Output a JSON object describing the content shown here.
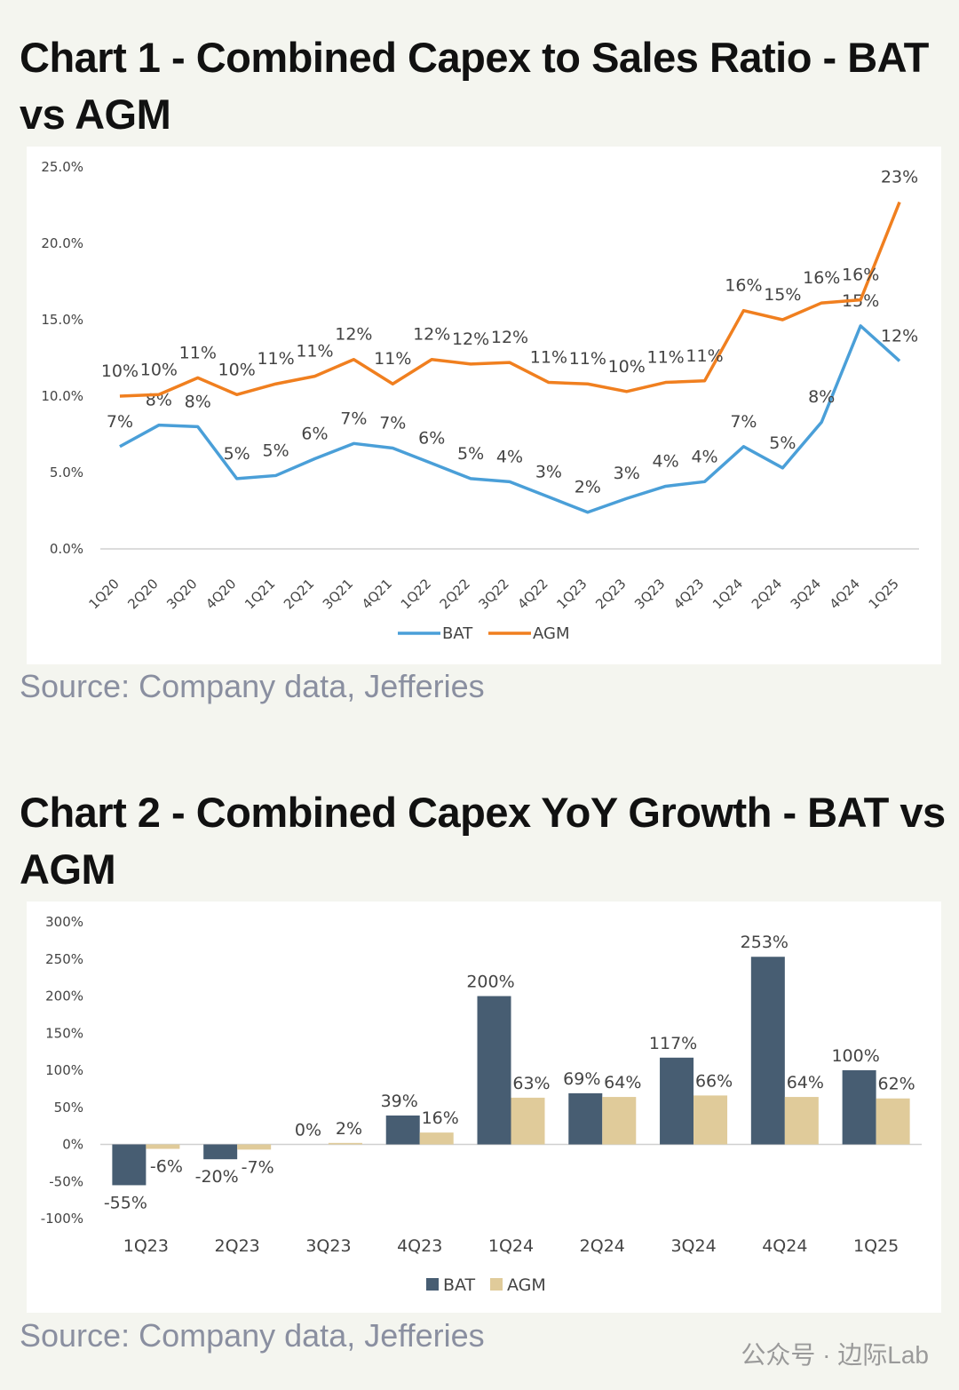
{
  "chart_data": [
    {
      "type": "line",
      "title": "Chart 1 - Combined Capex to Sales Ratio - BAT vs AGM",
      "source": "Source: Company data, Jefferies",
      "categories": [
        "1Q20",
        "2Q20",
        "3Q20",
        "4Q20",
        "1Q21",
        "2Q21",
        "3Q21",
        "4Q21",
        "1Q22",
        "2Q22",
        "3Q22",
        "4Q22",
        "1Q23",
        "2Q23",
        "3Q23",
        "4Q23",
        "1Q24",
        "2Q24",
        "3Q24",
        "4Q24",
        "1Q25"
      ],
      "series": [
        {
          "name": "BAT",
          "color": "#4a9fd8",
          "values": [
            6.7,
            8.1,
            8.0,
            4.6,
            4.8,
            5.9,
            6.9,
            6.6,
            5.6,
            4.6,
            4.4,
            3.4,
            2.4,
            3.3,
            4.1,
            4.4,
            6.7,
            5.3,
            8.3,
            14.6,
            12.3
          ],
          "value_labels": [
            "7%",
            "8%",
            "8%",
            "5%",
            "5%",
            "6%",
            "7%",
            "7%",
            "6%",
            "5%",
            "4%",
            "3%",
            "2%",
            "3%",
            "4%",
            "4%",
            "7%",
            "5%",
            "8%",
            "15%",
            "12%"
          ]
        },
        {
          "name": "AGM",
          "color": "#f07f1f",
          "values": [
            10.0,
            10.1,
            11.2,
            10.1,
            10.8,
            11.3,
            12.4,
            10.8,
            12.4,
            12.1,
            12.2,
            10.9,
            10.8,
            10.3,
            10.9,
            11.0,
            15.6,
            15.0,
            16.1,
            16.3,
            22.7
          ],
          "value_labels": [
            "10%",
            "10%",
            "11%",
            "10%",
            "11%",
            "11%",
            "12%",
            "11%",
            "12%",
            "12%",
            "12%",
            "11%",
            "11%",
            "10%",
            "11%",
            "11%",
            "16%",
            "15%",
            "16%",
            "16%",
            "23%"
          ]
        }
      ],
      "ylim": [
        0,
        25
      ],
      "yticks": [
        {
          "value": 0,
          "label": "0.0%"
        },
        {
          "value": 5,
          "label": "5.0%"
        },
        {
          "value": 10,
          "label": "10.0%"
        },
        {
          "value": 15,
          "label": "15.0%"
        },
        {
          "value": 20,
          "label": "20.0%"
        },
        {
          "value": 25,
          "label": "25.0%"
        }
      ],
      "grid": false,
      "legend": "bottom"
    },
    {
      "type": "bar",
      "title": "Chart 2 - Combined Capex YoY Growth - BAT vs AGM",
      "source": "Source: Company data, Jefferies",
      "categories": [
        "1Q23",
        "2Q23",
        "3Q23",
        "4Q23",
        "1Q24",
        "2Q24",
        "3Q24",
        "4Q24",
        "1Q25"
      ],
      "series": [
        {
          "name": "BAT",
          "color": "#475d72",
          "values": [
            -55,
            -20,
            0,
            39,
            200,
            69,
            117,
            253,
            100
          ],
          "value_labels": [
            "-55%",
            "-20%",
            "0%",
            "39%",
            "200%",
            "69%",
            "117%",
            "253%",
            "100%"
          ]
        },
        {
          "name": "AGM",
          "color": "#e0cb9a",
          "values": [
            -6,
            -7,
            2,
            16,
            63,
            64,
            66,
            64,
            62
          ],
          "value_labels": [
            "-6%",
            "-7%",
            "2%",
            "16%",
            "63%",
            "64%",
            "66%",
            "64%",
            "62%"
          ]
        }
      ],
      "ylim": [
        -100,
        300
      ],
      "yticks": [
        {
          "value": -100,
          "label": "-100%"
        },
        {
          "value": -50,
          "label": "-50%"
        },
        {
          "value": 0,
          "label": "0%"
        },
        {
          "value": 50,
          "label": "50%"
        },
        {
          "value": 100,
          "label": "100%"
        },
        {
          "value": 150,
          "label": "150%"
        },
        {
          "value": 200,
          "label": "200%"
        },
        {
          "value": 250,
          "label": "250%"
        },
        {
          "value": 300,
          "label": "300%"
        }
      ],
      "grid": false,
      "legend": "bottom"
    }
  ],
  "watermark": "公众号 · 边际Lab"
}
